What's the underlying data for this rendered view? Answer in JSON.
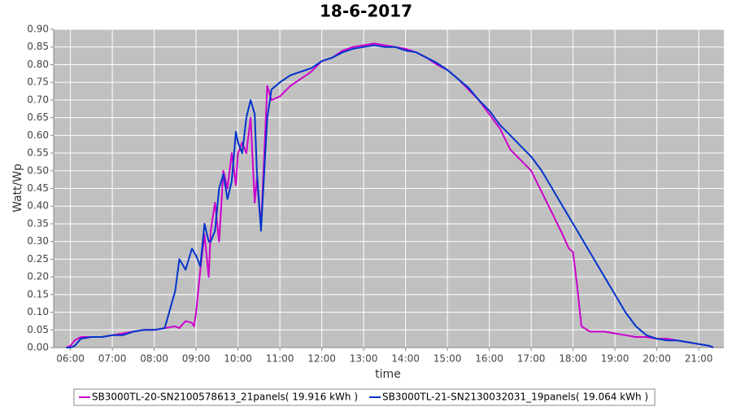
{
  "chart_data": {
    "type": "line",
    "title": "18-6-2017",
    "x_label": "time",
    "y_label": "Watt/Wp",
    "x": [
      5.9,
      6.0,
      6.1,
      6.25,
      6.5,
      6.75,
      7.0,
      7.25,
      7.5,
      7.75,
      8.0,
      8.25,
      8.5,
      8.6,
      8.75,
      8.9,
      8.95,
      9.0,
      9.1,
      9.2,
      9.3,
      9.35,
      9.45,
      9.55,
      9.65,
      9.75,
      9.85,
      9.95,
      10.0,
      10.1,
      10.2,
      10.3,
      10.4,
      10.45,
      10.55,
      10.7,
      10.8,
      11.0,
      11.25,
      11.5,
      11.75,
      12.0,
      12.25,
      12.5,
      12.75,
      13.0,
      13.25,
      13.5,
      13.75,
      14.0,
      14.25,
      14.5,
      14.75,
      15.0,
      15.25,
      15.5,
      15.75,
      16.0,
      16.25,
      16.5,
      16.75,
      17.0,
      17.25,
      17.5,
      17.75,
      17.9,
      18.0,
      18.1,
      18.2,
      18.4,
      18.75,
      19.0,
      19.25,
      19.5,
      19.75,
      20.0,
      20.25,
      20.5,
      20.75,
      21.0,
      21.25,
      21.35
    ],
    "series": [
      {
        "name": "SB3000TL-20-SN2100578613_21panels( 19.916 kWh )",
        "color": "#cc00cc",
        "values": [
          0.0,
          0.005,
          0.02,
          0.03,
          0.03,
          0.03,
          0.035,
          0.04,
          0.045,
          0.05,
          0.05,
          0.055,
          0.06,
          0.055,
          0.075,
          0.07,
          0.06,
          0.1,
          0.22,
          0.32,
          0.2,
          0.33,
          0.41,
          0.3,
          0.5,
          0.45,
          0.55,
          0.46,
          0.55,
          0.58,
          0.55,
          0.65,
          0.41,
          0.48,
          0.34,
          0.74,
          0.7,
          0.71,
          0.74,
          0.76,
          0.78,
          0.81,
          0.82,
          0.84,
          0.85,
          0.855,
          0.86,
          0.855,
          0.85,
          0.845,
          0.835,
          0.82,
          0.8,
          0.785,
          0.76,
          0.73,
          0.7,
          0.66,
          0.62,
          0.56,
          0.53,
          0.5,
          0.44,
          0.38,
          0.32,
          0.28,
          0.27,
          0.17,
          0.06,
          0.045,
          0.045,
          0.04,
          0.035,
          0.03,
          0.03,
          0.025,
          0.025,
          0.02,
          0.015,
          0.01,
          0.005,
          0.0
        ]
      },
      {
        "name": "SB3000TL-21-SN2130032031_19panels( 19.064 kWh )",
        "color": "#0033cc",
        "values": [
          0.0,
          0.0,
          0.005,
          0.025,
          0.03,
          0.03,
          0.035,
          0.035,
          0.045,
          0.05,
          0.05,
          0.055,
          0.16,
          0.25,
          0.22,
          0.28,
          0.27,
          0.26,
          0.23,
          0.35,
          0.3,
          0.3,
          0.33,
          0.45,
          0.49,
          0.42,
          0.47,
          0.61,
          0.58,
          0.55,
          0.65,
          0.7,
          0.66,
          0.5,
          0.33,
          0.65,
          0.73,
          0.75,
          0.77,
          0.78,
          0.79,
          0.81,
          0.82,
          0.835,
          0.845,
          0.85,
          0.855,
          0.85,
          0.85,
          0.84,
          0.835,
          0.82,
          0.805,
          0.785,
          0.76,
          0.735,
          0.7,
          0.67,
          0.63,
          0.6,
          0.57,
          0.54,
          0.5,
          0.45,
          0.4,
          0.37,
          0.35,
          0.33,
          0.31,
          0.27,
          0.2,
          0.15,
          0.1,
          0.06,
          0.035,
          0.025,
          0.02,
          0.02,
          0.015,
          0.01,
          0.005,
          0.0
        ]
      }
    ],
    "xlim": [
      5.6,
      21.6
    ],
    "xticks": [
      {
        "value": 6,
        "label": "06:00"
      },
      {
        "value": 7,
        "label": "07:00"
      },
      {
        "value": 8,
        "label": "08:00"
      },
      {
        "value": 9,
        "label": "09:00"
      },
      {
        "value": 10,
        "label": "10:00"
      },
      {
        "value": 11,
        "label": "11:00"
      },
      {
        "value": 12,
        "label": "12:00"
      },
      {
        "value": 13,
        "label": "13:00"
      },
      {
        "value": 14,
        "label": "14:00"
      },
      {
        "value": 15,
        "label": "15:00"
      },
      {
        "value": 16,
        "label": "16:00"
      },
      {
        "value": 17,
        "label": "17:00"
      },
      {
        "value": 18,
        "label": "18:00"
      },
      {
        "value": 19,
        "label": "19:00"
      },
      {
        "value": 20,
        "label": "20:00"
      },
      {
        "value": 21,
        "label": "21:00"
      }
    ],
    "ylim": [
      0,
      0.9
    ],
    "yticks": [
      {
        "value": 0,
        "label": "0.00"
      },
      {
        "value": 0.05,
        "label": "0.05"
      },
      {
        "value": 0.1,
        "label": "0.10"
      },
      {
        "value": 0.15,
        "label": "0.15"
      },
      {
        "value": 0.2,
        "label": "0.20"
      },
      {
        "value": 0.25,
        "label": "0.25"
      },
      {
        "value": 0.3,
        "label": "0.30"
      },
      {
        "value": 0.35,
        "label": "0.35"
      },
      {
        "value": 0.4,
        "label": "0.40"
      },
      {
        "value": 0.45,
        "label": "0.45"
      },
      {
        "value": 0.5,
        "label": "0.50"
      },
      {
        "value": 0.55,
        "label": "0.55"
      },
      {
        "value": 0.6,
        "label": "0.60"
      },
      {
        "value": 0.65,
        "label": "0.65"
      },
      {
        "value": 0.7,
        "label": "0.70"
      },
      {
        "value": 0.75,
        "label": "0.75"
      },
      {
        "value": 0.8,
        "label": "0.80"
      },
      {
        "value": 0.85,
        "label": "0.85"
      },
      {
        "value": 0.9,
        "label": "0.90"
      }
    ],
    "grid": true,
    "legend": "bottom"
  }
}
